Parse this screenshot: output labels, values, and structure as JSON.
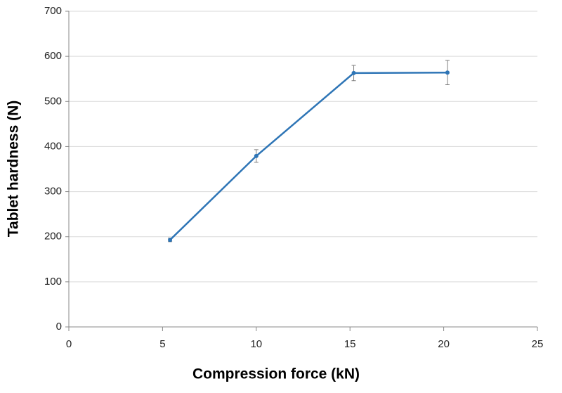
{
  "chart_data": {
    "type": "line",
    "x_label": "Compression force (kN)",
    "y_label": "Tablet hardness (N)",
    "x": [
      5.4,
      10.0,
      15.2,
      20.2
    ],
    "series": [
      {
        "color": "#2e75b6",
        "values": [
          193,
          379,
          563,
          564
        ],
        "errors": [
          4,
          14,
          17,
          27
        ],
        "error_color": "#7f7f7f"
      }
    ],
    "xlim": [
      0,
      25
    ],
    "xticks": [
      0,
      5,
      10,
      15,
      20,
      25
    ],
    "ylim": [
      0,
      700
    ],
    "yticks": [
      0,
      100,
      200,
      300,
      400,
      500,
      600,
      700
    ],
    "grid": true
  }
}
